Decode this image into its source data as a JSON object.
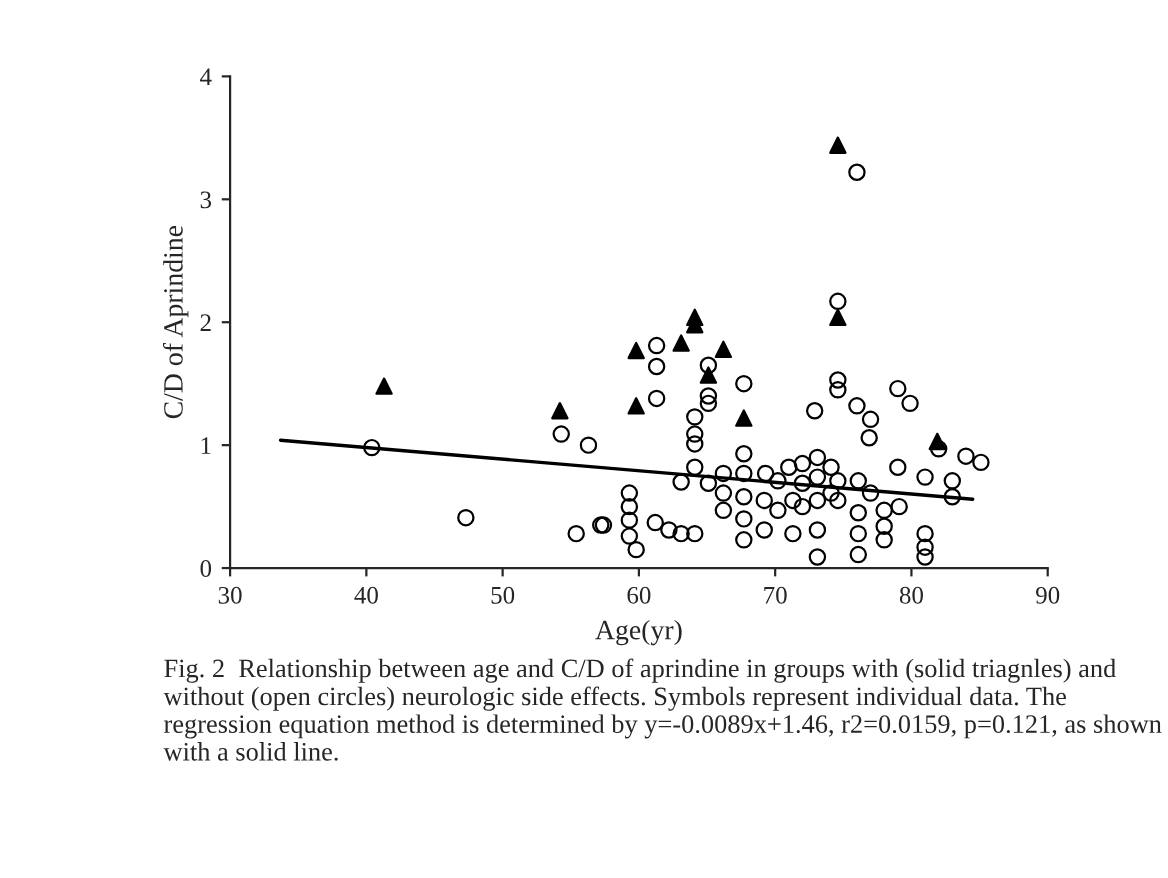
{
  "chart_data": {
    "type": "scatter",
    "xlabel": "Age(yr)",
    "ylabel": "C/D of Aprindine",
    "xlim": [
      30,
      90
    ],
    "xticks": [
      30,
      40,
      50,
      60,
      70,
      80,
      90
    ],
    "ylim": [
      0,
      4
    ],
    "yticks": [
      0,
      1,
      2,
      3,
      4
    ],
    "grid": false,
    "legend": false,
    "series": [
      {
        "type": "scatter",
        "marker": "triangle",
        "color": "#000000",
        "x": [
          41.3,
          54.2,
          74.6,
          74.6,
          64.1,
          64.1,
          59.8,
          63.1,
          66.2,
          65.1,
          59.8,
          67.7,
          81.9
        ],
        "values": [
          1.48,
          1.28,
          3.44,
          2.04,
          2.04,
          1.98,
          1.77,
          1.83,
          1.78,
          1.57,
          1.32,
          1.22,
          1.03
        ]
      },
      {
        "type": "scatter",
        "marker": "circle",
        "color": "#000000",
        "x": [
          40.4,
          47.3,
          54.3,
          56.3,
          55.4,
          57.2,
          76.0,
          74.6,
          61.3,
          61.3,
          61.3,
          65.1,
          65.1,
          65.1,
          67.7,
          74.6,
          74.6,
          76.0,
          77.0,
          76.9,
          72.9,
          79.0,
          79.9,
          64.1,
          64.1,
          64.1,
          64.1,
          63.1,
          65.1,
          66.2,
          66.2,
          66.2,
          67.7,
          67.7,
          67.7,
          67.7,
          67.7,
          69.2,
          69.2,
          70.2,
          71.0,
          71.3,
          72.0,
          72.0,
          72.0,
          73.1,
          73.1,
          73.1,
          73.1,
          73.1,
          74.1,
          74.1,
          74.6,
          74.6,
          76.1,
          76.1,
          76.1,
          76.1,
          77.0,
          78.0,
          78.0,
          78.0,
          79.0,
          81.0,
          79.1,
          81.0,
          81.0,
          81.0,
          83.0,
          83.0,
          84.0,
          85.1,
          82.0,
          59.3,
          59.3,
          59.3,
          59.3,
          59.8,
          57.4,
          61.2,
          62.2,
          64.1,
          63.1,
          71.3,
          70.2,
          69.3
        ],
        "values": [
          0.98,
          0.41,
          1.09,
          1.0,
          0.28,
          0.35,
          3.22,
          2.17,
          1.81,
          1.64,
          1.38,
          1.65,
          1.4,
          1.34,
          1.5,
          1.53,
          1.45,
          1.32,
          1.21,
          1.06,
          1.28,
          1.46,
          1.34,
          1.23,
          1.09,
          1.01,
          0.82,
          0.7,
          0.69,
          0.77,
          0.61,
          0.47,
          0.93,
          0.77,
          0.58,
          0.4,
          0.23,
          0.31,
          0.55,
          0.47,
          0.82,
          0.28,
          0.85,
          0.69,
          0.5,
          0.9,
          0.74,
          0.55,
          0.31,
          0.09,
          0.82,
          0.61,
          0.71,
          0.55,
          0.71,
          0.45,
          0.28,
          0.11,
          0.61,
          0.47,
          0.34,
          0.23,
          0.82,
          0.74,
          0.5,
          0.28,
          0.17,
          0.09,
          0.71,
          0.58,
          0.91,
          0.86,
          0.97,
          0.61,
          0.5,
          0.39,
          0.26,
          0.15,
          0.35,
          0.37,
          0.31,
          0.28,
          0.28,
          0.55,
          0.71,
          0.77
        ]
      },
      {
        "type": "line",
        "marker": "none",
        "line_style": "solid",
        "color": "#000000",
        "x": [
          33.7,
          84.5
        ],
        "values": [
          1.04,
          0.56
        ]
      }
    ],
    "annotations": [
      "Fig. 2  Relationship between age and C/D of aprindine in groups with (solid triagnles) and without (open circles) neurologic side effects. Symbols represent individual data. The regression equation method is determined by y=-0.0089x+1.46, r2=0.0159, p=0.121, as shown with a solid line."
    ]
  }
}
